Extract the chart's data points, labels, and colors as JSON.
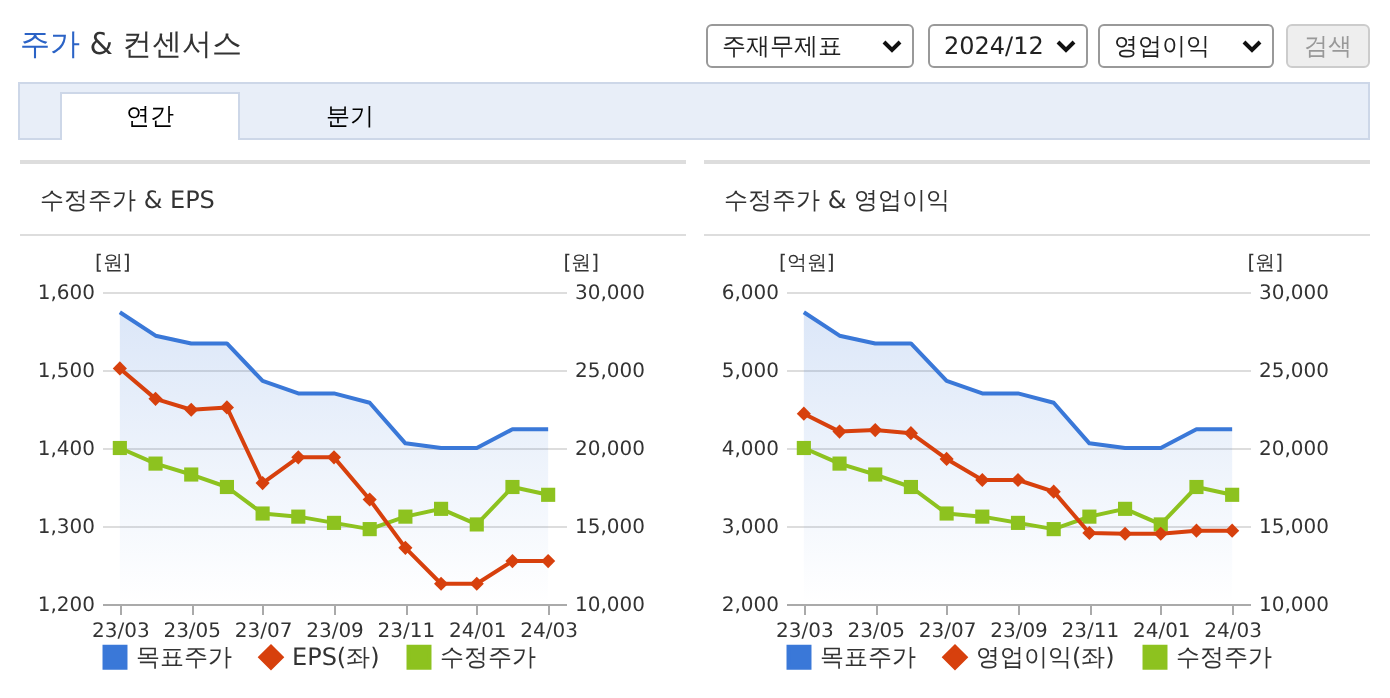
{
  "chart_data": [
    {
      "type": "line",
      "title": "수정주가 & EPS",
      "ylabel": "[원]",
      "y2label": "[원]",
      "annotations": [
        "주가 & 컨센서스",
        "주재무제표",
        "2024/12",
        "영업이익",
        "검색",
        "연간",
        "분기"
      ],
      "categories": [
        "23/03",
        null,
        "23/05",
        null,
        "23/07",
        null,
        "23/09",
        null,
        "23/11",
        null,
        "24/01",
        null,
        "24/03"
      ],
      "series": [
        {
          "name": "목표주가",
          "type": "area",
          "color": "#3a78d8",
          "axis": "y2",
          "marker": "none",
          "values": [
            28700,
            27200,
            26700,
            26700,
            24300,
            23500,
            23500,
            22900,
            20300,
            20000,
            20000,
            21200,
            21200
          ]
        },
        {
          "name": "EPS(좌)",
          "type": "line",
          "color": "#d7400d",
          "marker": "diamond",
          "values": [
            1502,
            1463,
            1449,
            1452,
            1355,
            1388,
            1388,
            1334,
            1272,
            1226,
            1226,
            1255,
            1255
          ]
        },
        {
          "name": "수정주가",
          "type": "line",
          "color": "#8dc21f",
          "axis": "y2",
          "marker": "square",
          "values": [
            20000,
            19000,
            18300,
            17500,
            15800,
            15600,
            15200,
            14800,
            15600,
            16100,
            15100,
            17500,
            17000
          ]
        }
      ],
      "ylim": [
        1200,
        1600
      ],
      "yticks": [
        {
          "value": 1200,
          "label": "1,200"
        },
        {
          "value": 1300,
          "label": "1,300"
        },
        {
          "value": 1400,
          "label": "1,400"
        },
        {
          "value": 1500,
          "label": "1,500"
        },
        {
          "value": 1600,
          "label": "1,600"
        }
      ],
      "y2lim": [
        10000,
        30000
      ],
      "y2ticks": [
        {
          "value": 10000,
          "label": "10,000"
        },
        {
          "value": 15000,
          "label": "15,000"
        },
        {
          "value": 20000,
          "label": "20,000"
        },
        {
          "value": 25000,
          "label": "25,000"
        },
        {
          "value": 30000,
          "label": "30,000"
        }
      ],
      "grid": "y",
      "legend": "bottom"
    },
    {
      "type": "line",
      "title": "수정주가 & 영업이익",
      "ylabel": "[억원]",
      "y2label": "[원]",
      "categories": [
        "23/03",
        null,
        "23/05",
        null,
        "23/07",
        null,
        "23/09",
        null,
        "23/11",
        null,
        "24/01",
        null,
        "24/03"
      ],
      "series": [
        {
          "name": "목표주가",
          "type": "area",
          "color": "#3a78d8",
          "axis": "y2",
          "marker": "none",
          "values": [
            28700,
            27200,
            26700,
            26700,
            24300,
            23500,
            23500,
            22900,
            20300,
            20000,
            20000,
            21200,
            21200
          ]
        },
        {
          "name": "영업이익(좌)",
          "type": "line",
          "color": "#d7400d",
          "marker": "diamond",
          "values": [
            4440,
            4210,
            4230,
            4190,
            3860,
            3590,
            3590,
            3440,
            2910,
            2900,
            2900,
            2940,
            2940
          ]
        },
        {
          "name": "수정주가",
          "type": "line",
          "color": "#8dc21f",
          "axis": "y2",
          "marker": "square",
          "values": [
            20000,
            19000,
            18300,
            17500,
            15800,
            15600,
            15200,
            14800,
            15600,
            16100,
            15100,
            17500,
            17000
          ]
        }
      ],
      "ylim": [
        2000,
        6000
      ],
      "yticks": [
        {
          "value": 2000,
          "label": "2,000"
        },
        {
          "value": 3000,
          "label": "3,000"
        },
        {
          "value": 4000,
          "label": "4,000"
        },
        {
          "value": 5000,
          "label": "5,000"
        },
        {
          "value": 6000,
          "label": "6,000"
        }
      ],
      "y2lim": [
        10000,
        30000
      ],
      "y2ticks": [
        {
          "value": 10000,
          "label": "10,000"
        },
        {
          "value": 15000,
          "label": "15,000"
        },
        {
          "value": 20000,
          "label": "20,000"
        },
        {
          "value": 25000,
          "label": "25,000"
        },
        {
          "value": 30000,
          "label": "30,000"
        }
      ],
      "grid": "y",
      "legend": "bottom"
    }
  ]
}
